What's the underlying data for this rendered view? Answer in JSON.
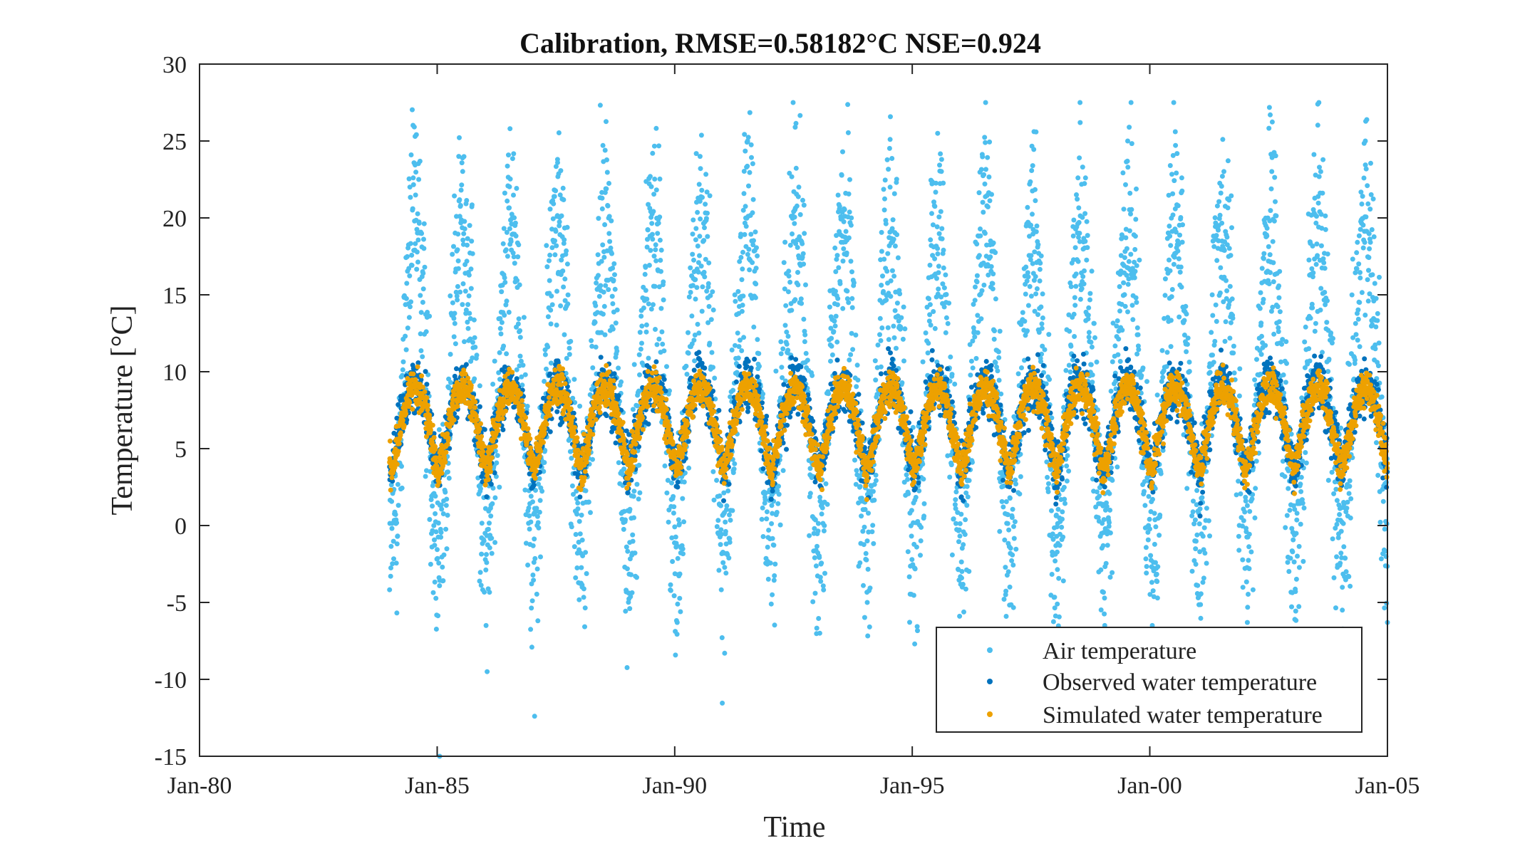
{
  "chart_data": {
    "type": "scatter",
    "title": "Calibration, RMSE=0.58182°C NSE=0.924",
    "xlabel": "Time",
    "ylabel": "Temperature [°C]",
    "xlim": [
      "1980-01-01",
      "2005-01-01"
    ],
    "ylim": [
      -15,
      30
    ],
    "x_ticks": [
      "Jan-80",
      "Jan-85",
      "Jan-90",
      "Jan-95",
      "Jan-00",
      "Jan-05"
    ],
    "y_ticks": [
      "-15",
      "-10",
      "-5",
      "0",
      "5",
      "10",
      "15",
      "20",
      "25",
      "30"
    ],
    "grid": false,
    "legend_position": "bottom-right",
    "data_start": "1984-01-01",
    "data_end": "2005-01-01",
    "series": [
      {
        "name": "Air temperature",
        "color": "#4DBEEE",
        "seasonal_mean_range": [
          -1,
          20
        ],
        "min": -15,
        "max": 27.5,
        "annual_peaks": [
          {
            "date": "1984-07-15",
            "value": 25.3
          },
          {
            "date": "1985-07-15",
            "value": 23.9
          },
          {
            "date": "1986-07-15",
            "value": 25.8
          },
          {
            "date": "1987-07-15",
            "value": 23.8
          },
          {
            "date": "1988-07-15",
            "value": 24.4
          },
          {
            "date": "1989-07-15",
            "value": 24.2
          },
          {
            "date": "1990-07-15",
            "value": 24.0
          },
          {
            "date": "1991-07-15",
            "value": 25.0
          },
          {
            "date": "1992-07-15",
            "value": 25.9
          },
          {
            "date": "1993-07-15",
            "value": 24.3
          },
          {
            "date": "1994-07-15",
            "value": 25.1
          },
          {
            "date": "1995-07-15",
            "value": 25.5
          },
          {
            "date": "1996-07-15",
            "value": 24.9
          },
          {
            "date": "1997-07-15",
            "value": 23.4
          },
          {
            "date": "1998-07-15",
            "value": 26.2
          },
          {
            "date": "1999-07-15",
            "value": 25.0
          },
          {
            "date": "2000-07-15",
            "value": 25.6
          },
          {
            "date": "2001-07-15",
            "value": 25.1
          },
          {
            "date": "2002-07-15",
            "value": 26.7
          },
          {
            "date": "2003-07-15",
            "value": 27.4
          },
          {
            "date": "2004-07-15",
            "value": 25.0
          }
        ],
        "annual_lows": [
          {
            "date": "1985-01-20",
            "value": -15.0
          },
          {
            "date": "1986-01-20",
            "value": -9.5
          },
          {
            "date": "1987-01-20",
            "value": -12.4
          },
          {
            "date": "1988-01-20",
            "value": -4.0
          },
          {
            "date": "1989-01-20",
            "value": -5.4
          },
          {
            "date": "1990-01-20",
            "value": -6.3
          },
          {
            "date": "1991-01-20",
            "value": -8.3
          },
          {
            "date": "1992-01-20",
            "value": -4.5
          },
          {
            "date": "1993-01-20",
            "value": -7.0
          },
          {
            "date": "1994-01-20",
            "value": -5.0
          },
          {
            "date": "1995-01-20",
            "value": -7.7
          },
          {
            "date": "1996-01-20",
            "value": -4.0
          },
          {
            "date": "1997-01-20",
            "value": -4.0
          },
          {
            "date": "1998-01-20",
            "value": -5.1
          },
          {
            "date": "1999-01-20",
            "value": -6.5
          },
          {
            "date": "2000-01-20",
            "value": -6.5
          },
          {
            "date": "2001-01-20",
            "value": -4.5
          },
          {
            "date": "2002-01-20",
            "value": -6.3
          },
          {
            "date": "2003-01-20",
            "value": -6.1
          },
          {
            "date": "2004-01-20",
            "value": -5.5
          },
          {
            "date": "2005-01-01",
            "value": -6.3
          }
        ]
      },
      {
        "name": "Observed water temperature",
        "color": "#0072BD",
        "seasonal_mean_range": [
          3.5,
          9.2
        ],
        "min": 0,
        "max": 11.5
      },
      {
        "name": "Simulated water temperature",
        "color": "#EDA100",
        "seasonal_mean_range": [
          3.5,
          9.0
        ],
        "min": 0.5,
        "max": 10.5
      }
    ]
  }
}
